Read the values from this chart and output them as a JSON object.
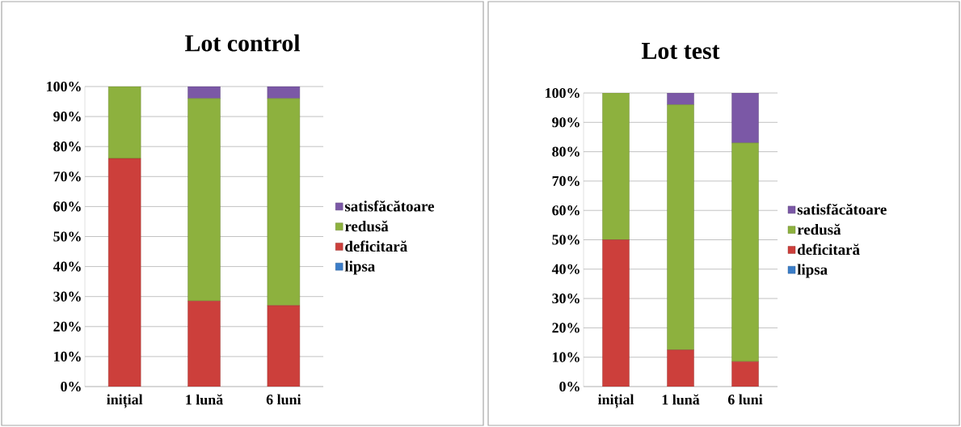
{
  "chart_data": [
    {
      "type": "bar",
      "title": "Lot control",
      "categories": [
        "inițial",
        "1 lună",
        "6 luni"
      ],
      "stacked": true,
      "grid": "y",
      "legend": "right",
      "ylim": [
        0,
        100
      ],
      "yticks": [
        {
          "value": 0,
          "label": "0%"
        },
        {
          "value": 10,
          "label": "10%"
        },
        {
          "value": 20,
          "label": "20%"
        },
        {
          "value": 30,
          "label": "30%"
        },
        {
          "value": 40,
          "label": "40%"
        },
        {
          "value": 50,
          "label": "50%"
        },
        {
          "value": 60,
          "label": "60%"
        },
        {
          "value": 70,
          "label": "70%"
        },
        {
          "value": 80,
          "label": "80%"
        },
        {
          "value": 90,
          "label": "90%"
        },
        {
          "value": 100,
          "label": "100%"
        }
      ],
      "series": [
        {
          "name": "lipsa",
          "color": "#3b7dc8",
          "values": [
            0,
            0,
            0
          ]
        },
        {
          "name": "deficitară",
          "color": "#cc3f3b",
          "values": [
            76,
            28.5,
            27
          ]
        },
        {
          "name": "redusă",
          "color": "#8db13e",
          "values": [
            24,
            67.5,
            69
          ]
        },
        {
          "name": "satisfăcătoare",
          "color": "#7b58a6",
          "values": [
            0,
            4,
            4
          ]
        }
      ]
    },
    {
      "type": "bar",
      "title": "Lot test",
      "categories": [
        "inițial",
        "1 lună",
        "6 luni"
      ],
      "stacked": true,
      "grid": "y",
      "legend": "right",
      "ylim": [
        0,
        100
      ],
      "yticks": [
        {
          "value": 0,
          "label": "0%"
        },
        {
          "value": 10,
          "label": "10%"
        },
        {
          "value": 20,
          "label": "20%"
        },
        {
          "value": 30,
          "label": "30%"
        },
        {
          "value": 40,
          "label": "40%"
        },
        {
          "value": 50,
          "label": "50%"
        },
        {
          "value": 60,
          "label": "60%"
        },
        {
          "value": 70,
          "label": "70%"
        },
        {
          "value": 80,
          "label": "80%"
        },
        {
          "value": 90,
          "label": "90%"
        },
        {
          "value": 100,
          "label": "100%"
        }
      ],
      "series": [
        {
          "name": "lipsa",
          "color": "#3b7dc8",
          "values": [
            0,
            0,
            0
          ]
        },
        {
          "name": "deficitară",
          "color": "#cc3f3b",
          "values": [
            50,
            12.5,
            8.5
          ]
        },
        {
          "name": "redusă",
          "color": "#8db13e",
          "values": [
            50,
            83.5,
            74.5
          ]
        },
        {
          "name": "satisfăcătoare",
          "color": "#7b58a6",
          "values": [
            0,
            4,
            17
          ]
        }
      ]
    }
  ]
}
